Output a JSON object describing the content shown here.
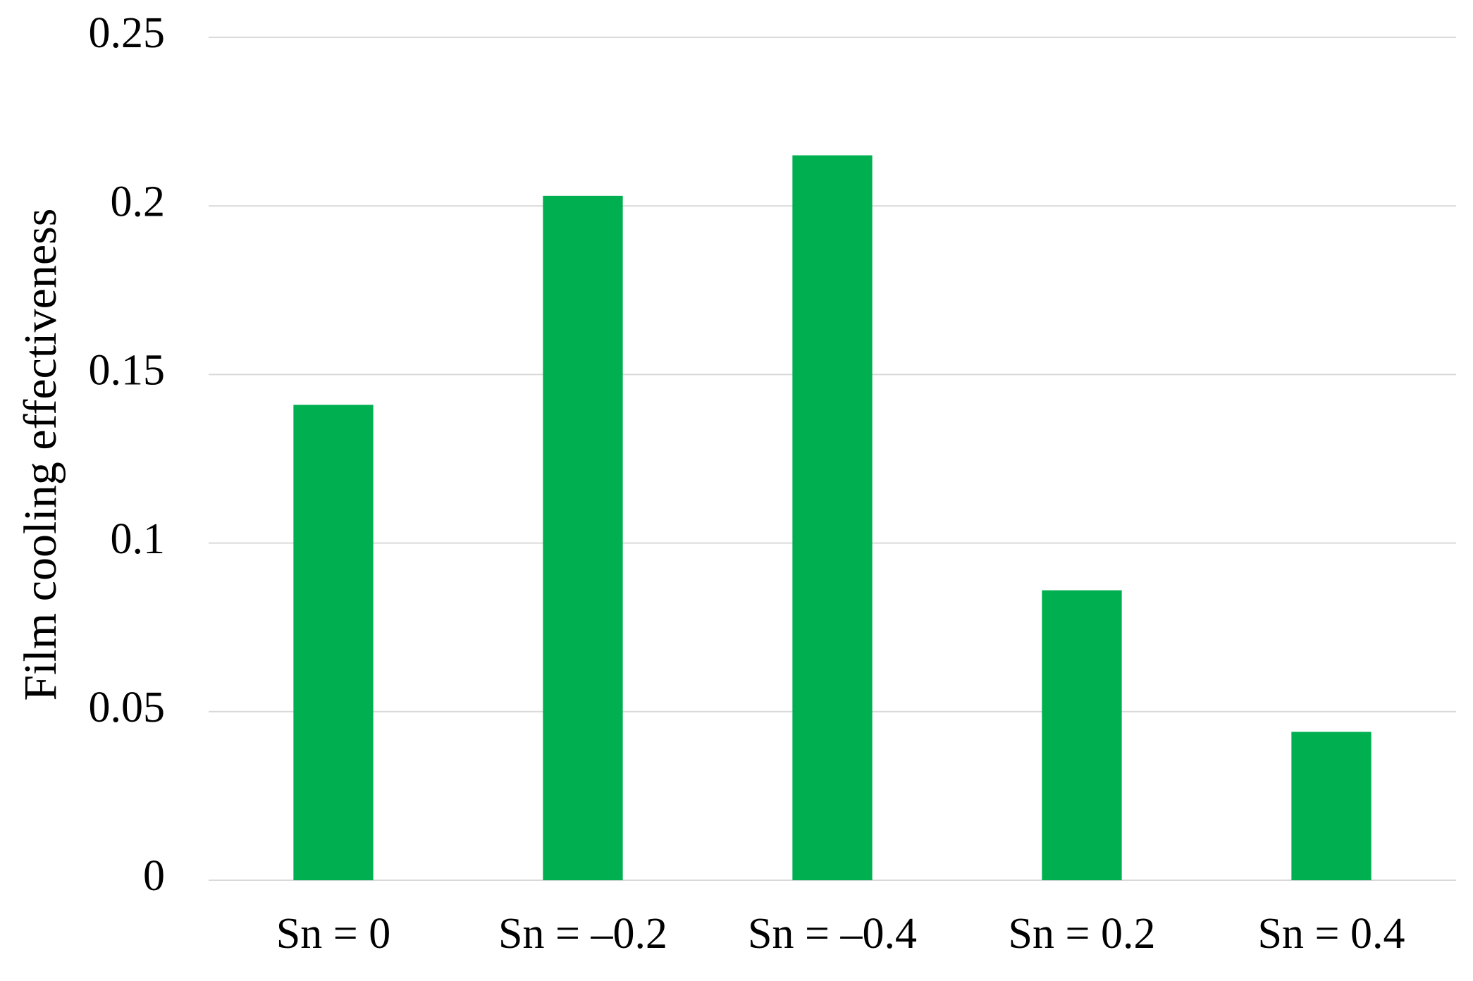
{
  "chart_data": {
    "type": "bar",
    "y_label": "Film cooling effectiveness",
    "categories": [
      "Sn = 0",
      "Sn = –0.2",
      "Sn = –0.4",
      "Sn = 0.2",
      "Sn = 0.4"
    ],
    "values": [
      0.141,
      0.203,
      0.215,
      0.086,
      0.044
    ],
    "color": "#00b050",
    "ylim": [
      0,
      0.25
    ],
    "yticks": [
      0,
      0.05,
      0.1,
      0.15,
      0.2,
      0.25
    ],
    "grid": true
  }
}
